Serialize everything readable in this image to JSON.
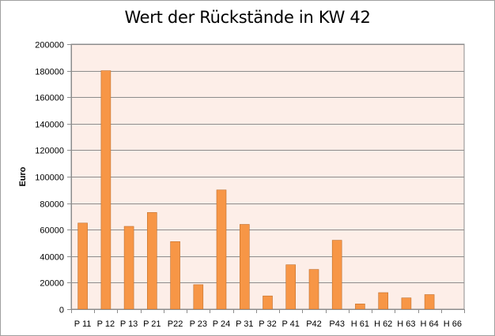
{
  "chart_data": {
    "type": "bar",
    "title": "Wert der Rückstände in KW 42",
    "xlabel": "",
    "ylabel": "Euro",
    "ylim": [
      0,
      200000
    ],
    "yticks": [
      0,
      20000,
      40000,
      60000,
      80000,
      100000,
      120000,
      140000,
      160000,
      180000,
      200000
    ],
    "categories": [
      "P 11",
      "P 12",
      "P 13",
      "P 21",
      "P22",
      "P 23",
      "P 24",
      "P 31",
      "P 32",
      "P 41",
      "P42",
      "P43",
      "H 61",
      "H 62",
      "H 63",
      "H 64",
      "H 66"
    ],
    "values": [
      65000,
      180000,
      62500,
      73000,
      51000,
      18500,
      90000,
      64000,
      10000,
      33500,
      30000,
      52000,
      4000,
      12500,
      8500,
      11000,
      0
    ],
    "grid": true,
    "legend": "none",
    "colors": {
      "bar": "#f79646",
      "bar_edge": "#c0712f",
      "plot_background": "#fdeee8",
      "gridline": "#8c8c8c",
      "axis": "#8c8c8c"
    }
  }
}
